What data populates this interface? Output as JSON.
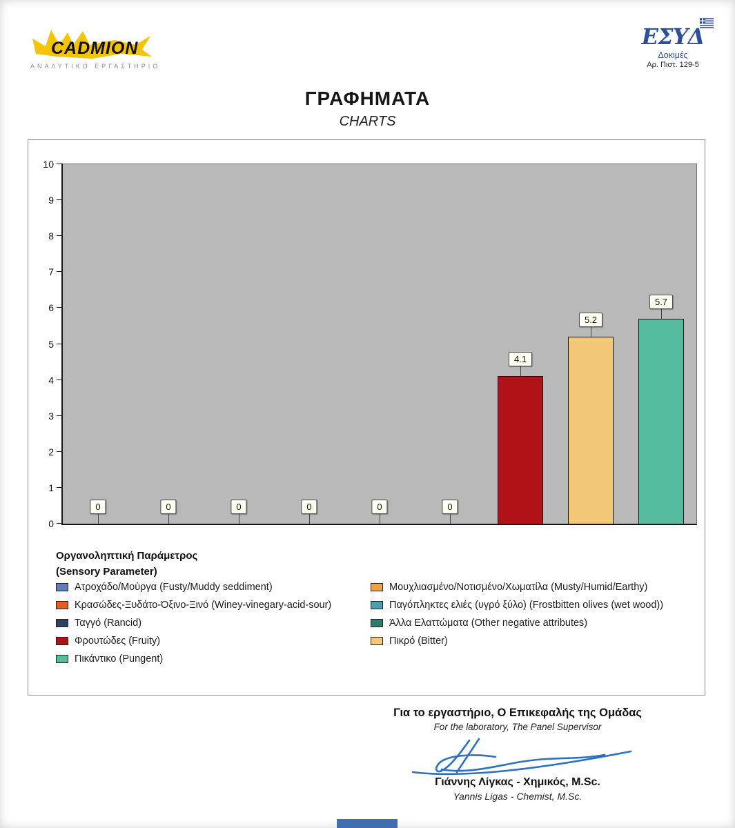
{
  "header": {
    "cadmion": {
      "name": "CADMION",
      "tagline": "ΑΝΑΛΥΤΙΚΟ ΕΡΓΑΣΤΗΡΙΟ"
    },
    "esyd": {
      "name": "ΕΣΥΔ",
      "sub1": "Δοκιμές",
      "sub2": "Αρ. Πιστ. 129-5"
    }
  },
  "title": "ΓΡΑΦΗΜΑΤΑ",
  "subtitle": "CHARTS",
  "chart_data": {
    "type": "bar",
    "title": "",
    "xlabel": "",
    "ylabel": "",
    "ylim": [
      0,
      10
    ],
    "yticks": [
      0,
      1,
      2,
      3,
      4,
      5,
      6,
      7,
      8,
      9,
      10
    ],
    "grid": false,
    "plot_background": "#b9b9b9",
    "legend_position": "bottom",
    "categories": [
      "Ατροχάδο/Μούργα (Fusty/Muddy seddiment)",
      "Κρασώδες-Ξυδάτο-Όξινο-Ξινό (Winey-vinegary-acid-sour)",
      "Ταγγό (Rancid)",
      "Μουχλιασμένο/Νοτισμένο/Χωματίλα (Musty/Humid/Earthy)",
      "Παγόπληκτες ελιές (υγρό ξύλο) (Frostbitten olives (wet wood))",
      "Άλλα Ελαττώματα (Other negative attributes)",
      "Φρουτώδες (Fruity)",
      "Πικρό (Bitter)",
      "Πικάντικο (Pungent)"
    ],
    "values": [
      0,
      0,
      0,
      0,
      0,
      0,
      4.1,
      5.2,
      5.7
    ],
    "bar_colors": [
      "#5b7fb8",
      "#e55d20",
      "#2e3f66",
      "#f0a23c",
      "#4f9dae",
      "#2e7d68",
      "#b01218",
      "#f2c775",
      "#55bd9e"
    ],
    "value_label_background": "#fffff2"
  },
  "legend": {
    "title_el": "Οργανοληπτική Παράμετρος",
    "title_en": "(Sensory Parameter)",
    "columns": [
      [
        {
          "label": "Ατροχάδο/Μούργα (Fusty/Muddy seddiment)",
          "color": "#5b7fb8"
        },
        {
          "label": "Κρασώδες-Ξυδάτο-Όξινο-Ξινό (Winey-vinegary-acid-sour)",
          "color": "#e55d20"
        },
        {
          "label": "Ταγγό (Rancid)",
          "color": "#2e3f66"
        },
        {
          "label": "Φρουτώδες (Fruity)",
          "color": "#b01218"
        },
        {
          "label": "Πικάντικο (Pungent)",
          "color": "#55bd9e"
        }
      ],
      [
        {
          "label": "Μουχλιασμένο/Νοτισμένο/Χωματίλα (Musty/Humid/Earthy)",
          "color": "#f0a23c"
        },
        {
          "label": "Παγόπληκτες ελιές (υγρό ξύλο) (Frostbitten olives (wet wood))",
          "color": "#4f9dae"
        },
        {
          "label": "Άλλα Ελαττώματα (Other negative attributes)",
          "color": "#2e7d68"
        },
        {
          "label": "Πικρό (Bitter)",
          "color": "#f2c775"
        }
      ]
    ]
  },
  "footer": {
    "for_lab_el": "Για το εργαστήριο, Ο Επικεφαλής της Ομάδας",
    "for_lab_en": "For the laboratory, The Panel Supervisor",
    "signer_el": "Γιάννης Λίγκας - Χημικός, M.Sc.",
    "signer_en": "Yannis Ligas - Chemist, M.Sc."
  }
}
